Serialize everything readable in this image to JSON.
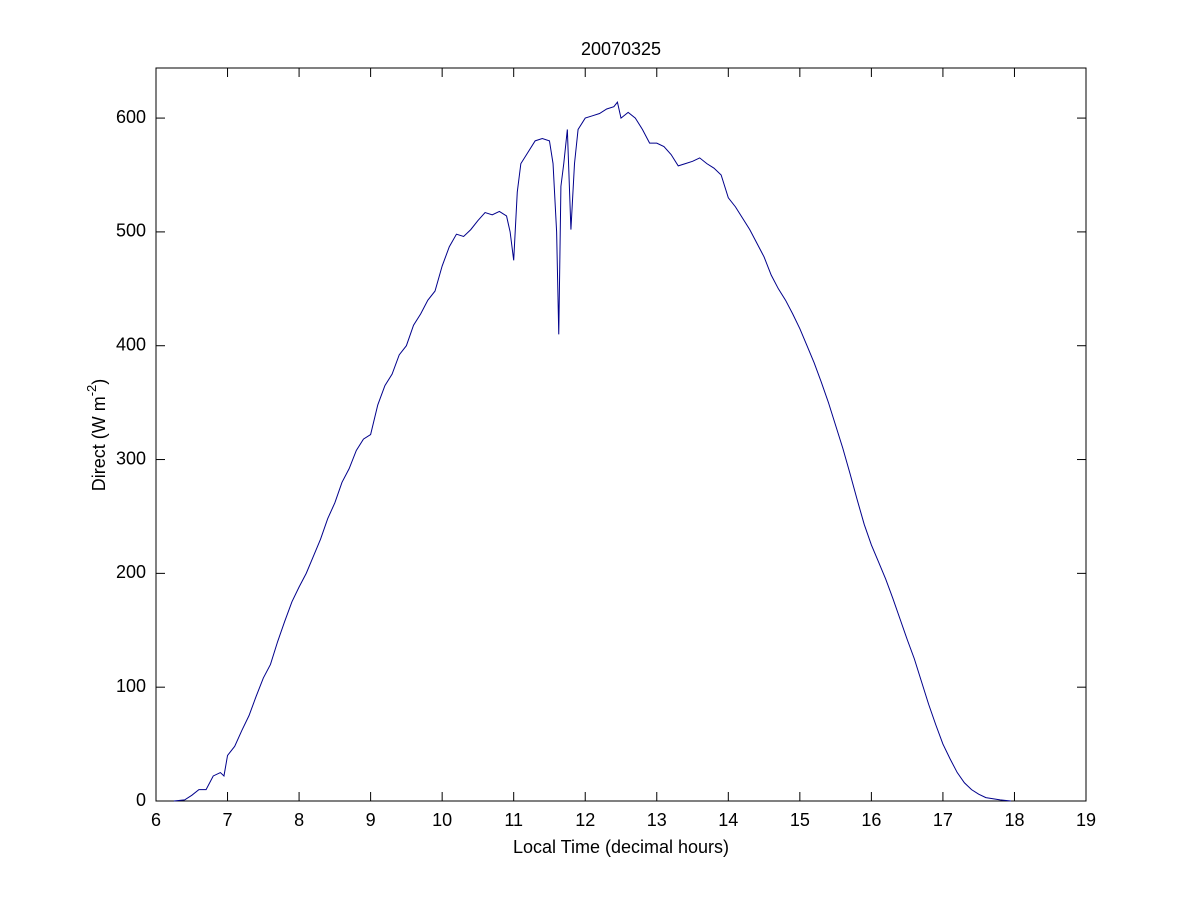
{
  "chart_data": {
    "type": "line",
    "title": "20070325",
    "xlabel": "Local Time (decimal hours)",
    "ylabel": {
      "text": "Direct (W m",
      "superscript": "-2",
      "suffix": ")"
    },
    "x": [
      6.25,
      6.4,
      6.5,
      6.6,
      6.7,
      6.8,
      6.9,
      6.95,
      7.0,
      7.1,
      7.2,
      7.3,
      7.4,
      7.5,
      7.6,
      7.7,
      7.8,
      7.9,
      8.0,
      8.1,
      8.2,
      8.3,
      8.4,
      8.5,
      8.6,
      8.7,
      8.8,
      8.9,
      9.0,
      9.1,
      9.2,
      9.3,
      9.4,
      9.5,
      9.6,
      9.7,
      9.8,
      9.9,
      10.0,
      10.1,
      10.2,
      10.3,
      10.4,
      10.5,
      10.6,
      10.7,
      10.8,
      10.9,
      10.95,
      11.0,
      11.05,
      11.1,
      11.2,
      11.3,
      11.4,
      11.5,
      11.55,
      11.6,
      11.63,
      11.66,
      11.7,
      11.75,
      11.8,
      11.85,
      11.9,
      12.0,
      12.1,
      12.2,
      12.3,
      12.4,
      12.45,
      12.5,
      12.6,
      12.7,
      12.8,
      12.9,
      13.0,
      13.1,
      13.2,
      13.3,
      13.4,
      13.5,
      13.6,
      13.7,
      13.8,
      13.9,
      14.0,
      14.1,
      14.2,
      14.3,
      14.4,
      14.5,
      14.6,
      14.7,
      14.8,
      14.9,
      15.0,
      15.1,
      15.2,
      15.3,
      15.4,
      15.5,
      15.6,
      15.7,
      15.8,
      15.9,
      16.0,
      16.1,
      16.2,
      16.3,
      16.4,
      16.5,
      16.6,
      16.7,
      16.8,
      16.9,
      17.0,
      17.1,
      17.2,
      17.3,
      17.4,
      17.5,
      17.6,
      17.7,
      17.8,
      17.95
    ],
    "series": [
      {
        "name": "Direct",
        "color": "#00008b",
        "values": [
          0,
          1,
          5,
          10,
          10,
          22,
          25,
          22,
          40,
          48,
          62,
          75,
          92,
          108,
          120,
          140,
          158,
          175,
          188,
          200,
          215,
          230,
          248,
          262,
          280,
          292,
          308,
          318,
          322,
          348,
          365,
          375,
          392,
          400,
          418,
          428,
          440,
          448,
          470,
          487,
          498,
          496,
          502,
          510,
          517,
          515,
          518,
          514,
          500,
          475,
          535,
          560,
          570,
          580,
          582,
          580,
          560,
          500,
          410,
          540,
          560,
          590,
          502,
          560,
          590,
          600,
          602,
          604,
          608,
          610,
          614,
          600,
          605,
          600,
          590,
          578,
          578,
          575,
          568,
          558,
          560,
          562,
          565,
          560,
          556,
          550,
          530,
          522,
          512,
          502,
          490,
          478,
          462,
          450,
          440,
          428,
          415,
          400,
          385,
          368,
          350,
          330,
          310,
          288,
          265,
          243,
          225,
          210,
          195,
          178,
          160,
          142,
          125,
          105,
          85,
          67,
          50,
          37,
          25,
          16,
          10,
          6,
          3,
          2,
          1,
          0
        ]
      }
    ],
    "xlim": [
      6,
      19
    ],
    "ylim": [
      0,
      644
    ],
    "xticks": [
      6,
      7,
      8,
      9,
      10,
      11,
      12,
      13,
      14,
      15,
      16,
      17,
      18,
      19
    ],
    "yticks": [
      0,
      100,
      200,
      300,
      400,
      500,
      600
    ]
  }
}
